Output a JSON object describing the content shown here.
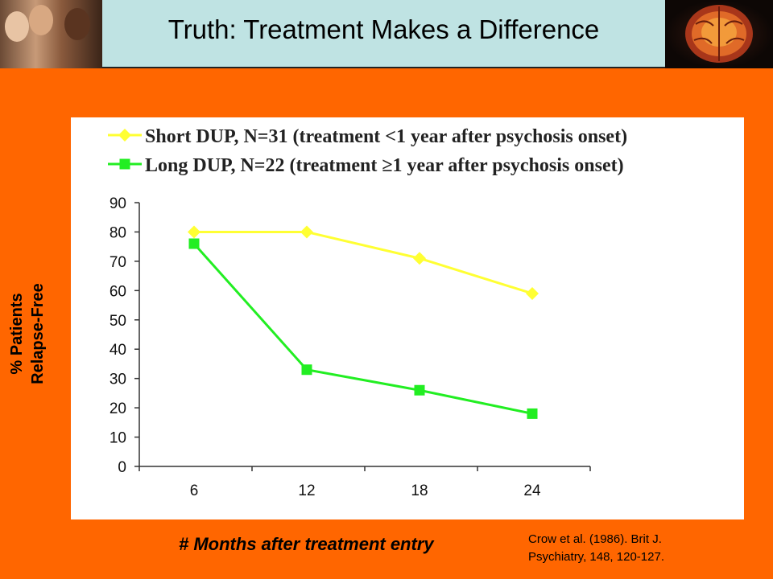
{
  "slide": {
    "title": "Truth: Treatment Makes a Difference",
    "ylabel_line1": "% Patients",
    "ylabel_line2": "Relapse-Free",
    "xlabel": "# Months after treatment entry",
    "citation_line1": "Crow et al. (1986). Brit J.",
    "citation_line2": "Psychiatry, 148, 120-127.",
    "photo_icon": "group-photo",
    "brain_icon": "brain-image"
  },
  "chart_data": {
    "type": "line",
    "categories": [
      "6",
      "12",
      "18",
      "24"
    ],
    "series": [
      {
        "name": "Short DUP, N=31 (treatment <1 year after psychosis onset)",
        "values": [
          80,
          80,
          71,
          59
        ],
        "color": "#ffff33",
        "marker": "diamond"
      },
      {
        "name": "Long DUP, N=22 (treatment ≥1 year after psychosis onset)",
        "values": [
          76,
          33,
          26,
          18
        ],
        "color": "#22ee22",
        "marker": "square"
      }
    ],
    "ylim": [
      0,
      90
    ],
    "yticks": [
      "0",
      "10",
      "20",
      "30",
      "40",
      "50",
      "60",
      "70",
      "80",
      "90"
    ],
    "legend_position": "top",
    "grid": false
  }
}
